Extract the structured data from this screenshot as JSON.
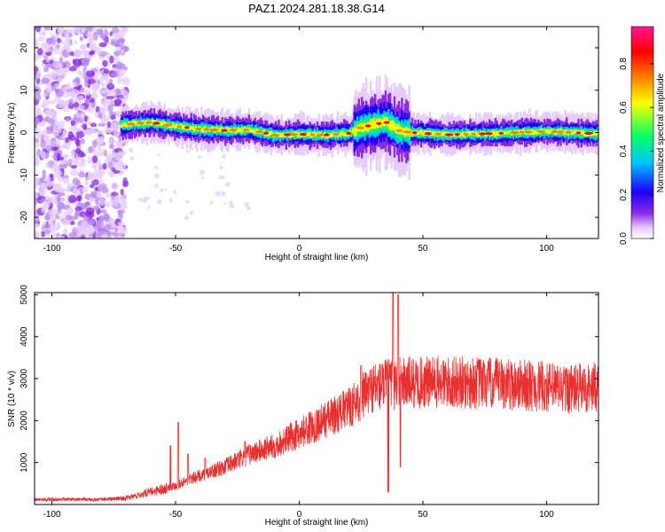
{
  "figure": {
    "title": "PAZ1.2024.281.18.38.G14"
  },
  "colors": {
    "snr_line": "#e8302f",
    "colormap": [
      "#ffffff",
      "#e6ccff",
      "#8a2be2",
      "#1c00ff",
      "#00c8ff",
      "#00ff66",
      "#ffff00",
      "#ff7f00",
      "#ff0000",
      "#ff1493"
    ]
  },
  "chart_data": [
    {
      "type": "heatmap",
      "name": "spectrogram",
      "title": "PAZ1.2024.281.18.38.G14",
      "xlabel": "Height of straight line (km)",
      "ylabel": "Frequency (Hz)",
      "xlim": [
        -107,
        121
      ],
      "ylim": [
        -25,
        25
      ],
      "xticks": [
        -100,
        -50,
        0,
        50,
        100
      ],
      "yticks": [
        -20,
        -10,
        0,
        10,
        20
      ],
      "colorbar": {
        "label": "Normalized spectral amplitude",
        "range": [
          0,
          0.97
        ],
        "ticks": [
          0.0,
          0.2,
          0.4,
          0.6,
          0.8
        ]
      },
      "ridge": {
        "x_start": -72,
        "points": [
          {
            "x": -72,
            "y": 1.8
          },
          {
            "x": -60,
            "y": 2.4
          },
          {
            "x": -50,
            "y": 1.5
          },
          {
            "x": -40,
            "y": 0.8
          },
          {
            "x": -30,
            "y": 0.5
          },
          {
            "x": -20,
            "y": 0.7
          },
          {
            "x": -10,
            "y": -0.6
          },
          {
            "x": 0,
            "y": -0.4
          },
          {
            "x": 10,
            "y": -0.6
          },
          {
            "x": 20,
            "y": -0.2
          },
          {
            "x": 25,
            "y": 1.2
          },
          {
            "x": 35,
            "y": 2.5
          },
          {
            "x": 40,
            "y": 0.5
          },
          {
            "x": 45,
            "y": 0.0
          },
          {
            "x": 60,
            "y": -0.5
          },
          {
            "x": 80,
            "y": -0.2
          },
          {
            "x": 100,
            "y": 0.3
          },
          {
            "x": 121,
            "y": -0.3
          }
        ]
      },
      "noise_region": {
        "x": [
          -107,
          -70
        ],
        "y": [
          -25,
          25
        ]
      }
    },
    {
      "type": "line",
      "name": "snr",
      "xlabel": "Height of straight line (km)",
      "ylabel": "SNR (10 * v/v)",
      "xlim": [
        -107,
        121
      ],
      "ylim": [
        0,
        5050
      ],
      "xticks": [
        -100,
        -50,
        0,
        50,
        100
      ],
      "yticks": [
        1000,
        2000,
        3000,
        4000,
        5000
      ],
      "trend": [
        {
          "x": -107,
          "y": 120
        },
        {
          "x": -80,
          "y": 120
        },
        {
          "x": -70,
          "y": 150
        },
        {
          "x": -60,
          "y": 300
        },
        {
          "x": -50,
          "y": 450
        },
        {
          "x": -40,
          "y": 700
        },
        {
          "x": -30,
          "y": 900
        },
        {
          "x": -20,
          "y": 1200
        },
        {
          "x": -10,
          "y": 1400
        },
        {
          "x": 0,
          "y": 1700
        },
        {
          "x": 10,
          "y": 2000
        },
        {
          "x": 20,
          "y": 2300
        },
        {
          "x": 30,
          "y": 2800
        },
        {
          "x": 40,
          "y": 2900
        },
        {
          "x": 50,
          "y": 2900
        },
        {
          "x": 70,
          "y": 2900
        },
        {
          "x": 90,
          "y": 2850
        },
        {
          "x": 110,
          "y": 2750
        },
        {
          "x": 121,
          "y": 2800
        }
      ],
      "spikes": [
        {
          "x": -52,
          "y": 1400
        },
        {
          "x": -49,
          "y": 1950
        },
        {
          "x": -45,
          "y": 1200
        },
        {
          "x": -38,
          "y": 1100
        },
        {
          "x": -22,
          "y": 1500
        },
        {
          "x": 25,
          "y": 3300
        },
        {
          "x": 38,
          "y": 5050
        },
        {
          "x": 40,
          "y": 5000
        },
        {
          "x": 36,
          "y": 300
        },
        {
          "x": 41,
          "y": 900
        }
      ]
    }
  ]
}
